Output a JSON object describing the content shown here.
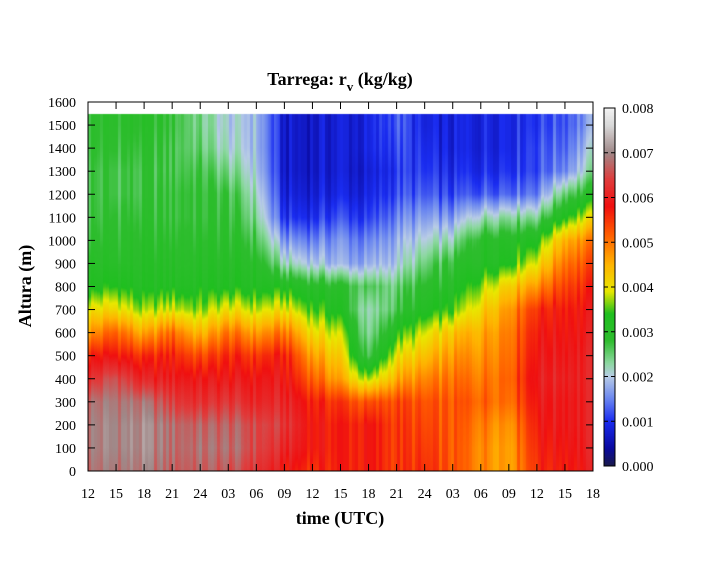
{
  "chart_data": {
    "type": "heatmap",
    "title_main": "Tarrega: r",
    "title_sub": "v",
    "title_units": " (kg/kg)",
    "xlabel": "time (UTC)",
    "ylabel": "Altura (m)",
    "x_tick_labels": [
      "12",
      "15",
      "18",
      "21",
      "24",
      "03",
      "06",
      "09",
      "12",
      "15",
      "18",
      "21",
      "24",
      "03",
      "06",
      "09",
      "12",
      "15",
      "18"
    ],
    "xlim_hours": [
      0,
      54
    ],
    "ylim": [
      0,
      1600
    ],
    "y_ticks": [
      0,
      100,
      200,
      300,
      400,
      500,
      600,
      700,
      800,
      900,
      1000,
      1100,
      1200,
      1300,
      1400,
      1500,
      1600
    ],
    "colorbar": {
      "range": [
        0.0,
        0.008
      ],
      "tick_labels": [
        "0.000",
        "0.001",
        "0.002",
        "0.003",
        "0.004",
        "0.005",
        "0.006",
        "0.007",
        "0.008"
      ],
      "stops": [
        {
          "v": 0.0,
          "c": "#1a1a4a"
        },
        {
          "v": 0.0004,
          "c": "#0a0aa0"
        },
        {
          "v": 0.001,
          "c": "#1a2cf0"
        },
        {
          "v": 0.0015,
          "c": "#6a86f0"
        },
        {
          "v": 0.002,
          "c": "#b8cce6"
        },
        {
          "v": 0.0023,
          "c": "#8cd8a0"
        },
        {
          "v": 0.0028,
          "c": "#2ebd2e"
        },
        {
          "v": 0.0034,
          "c": "#1fbf1f"
        },
        {
          "v": 0.0039,
          "c": "#e8e800"
        },
        {
          "v": 0.0045,
          "c": "#ffb400"
        },
        {
          "v": 0.0052,
          "c": "#ff5a00"
        },
        {
          "v": 0.0058,
          "c": "#f01010"
        },
        {
          "v": 0.0064,
          "c": "#e03c3c"
        },
        {
          "v": 0.007,
          "c": "#a08888"
        },
        {
          "v": 0.0076,
          "c": "#d8d8d8"
        },
        {
          "v": 0.008,
          "c": "#f4f4f4"
        }
      ]
    },
    "data_top": 1550,
    "profile_times": [
      0,
      3,
      6,
      9,
      12,
      15,
      18,
      21,
      24,
      27,
      30,
      33,
      36,
      39,
      42,
      45,
      48,
      51,
      54
    ],
    "profile_heights": [
      0,
      100,
      200,
      300,
      400,
      500,
      600,
      700,
      800,
      900,
      1000,
      1100,
      1200,
      1300,
      1400,
      1500,
      1550
    ],
    "values": [
      [
        0.0068,
        0.0069,
        0.0069,
        0.0068,
        0.0062,
        0.0057,
        0.0047,
        0.004,
        0.0032,
        0.003,
        0.0028,
        0.0027,
        0.0027,
        0.0027,
        0.0028,
        0.0028,
        0.0028
      ],
      [
        0.0069,
        0.007,
        0.007,
        0.0069,
        0.0066,
        0.0058,
        0.0052,
        0.0041,
        0.0034,
        0.003,
        0.0029,
        0.0028,
        0.0027,
        0.0027,
        0.0028,
        0.0029,
        0.0029
      ],
      [
        0.0069,
        0.007,
        0.007,
        0.0068,
        0.006,
        0.0055,
        0.0045,
        0.0036,
        0.0031,
        0.003,
        0.0029,
        0.0028,
        0.0027,
        0.0027,
        0.0028,
        0.0029,
        0.0029
      ],
      [
        0.0067,
        0.0068,
        0.0068,
        0.0064,
        0.006,
        0.0057,
        0.0051,
        0.0039,
        0.0032,
        0.003,
        0.0029,
        0.0028,
        0.0028,
        0.0027,
        0.0027,
        0.0028,
        0.0028
      ],
      [
        0.0067,
        0.0068,
        0.0067,
        0.0062,
        0.0059,
        0.0053,
        0.0044,
        0.0036,
        0.0032,
        0.003,
        0.0029,
        0.0028,
        0.0028,
        0.0027,
        0.0025,
        0.0024,
        0.0024
      ],
      [
        0.0066,
        0.0068,
        0.0067,
        0.0063,
        0.0059,
        0.0056,
        0.005,
        0.004,
        0.0032,
        0.003,
        0.0029,
        0.0028,
        0.0027,
        0.0024,
        0.0021,
        0.002,
        0.002
      ],
      [
        0.0063,
        0.0065,
        0.0065,
        0.0061,
        0.0059,
        0.0055,
        0.0047,
        0.0038,
        0.0032,
        0.003,
        0.0027,
        0.0024,
        0.0022,
        0.002,
        0.0019,
        0.0019,
        0.0019
      ],
      [
        0.0058,
        0.0061,
        0.0063,
        0.0061,
        0.0059,
        0.0057,
        0.005,
        0.004,
        0.0032,
        0.0022,
        0.0016,
        0.001,
        0.0008,
        0.0007,
        0.0007,
        0.0007,
        0.0007
      ],
      [
        0.0056,
        0.0058,
        0.0058,
        0.0057,
        0.0052,
        0.0047,
        0.0041,
        0.0035,
        0.003,
        0.002,
        0.0015,
        0.001,
        0.0008,
        0.0007,
        0.0007,
        0.0007,
        0.0007
      ],
      [
        0.0057,
        0.0057,
        0.0057,
        0.0055,
        0.0046,
        0.0042,
        0.0038,
        0.0032,
        0.0029,
        0.0018,
        0.0016,
        0.0012,
        0.0009,
        0.0008,
        0.0008,
        0.0008,
        0.0008
      ],
      [
        0.0057,
        0.0057,
        0.0057,
        0.0052,
        0.0036,
        0.0025,
        0.0022,
        0.0021,
        0.0025,
        0.0017,
        0.0014,
        0.001,
        0.0008,
        0.0007,
        0.0008,
        0.0008,
        0.0008
      ],
      [
        0.0055,
        0.0055,
        0.0055,
        0.0054,
        0.0046,
        0.004,
        0.0033,
        0.0027,
        0.0025,
        0.002,
        0.0018,
        0.0015,
        0.0012,
        0.0011,
        0.0012,
        0.0013,
        0.0013
      ],
      [
        0.0055,
        0.0054,
        0.0053,
        0.0052,
        0.0048,
        0.0043,
        0.0038,
        0.0031,
        0.0028,
        0.0024,
        0.002,
        0.0016,
        0.0012,
        0.001,
        0.0009,
        0.0008,
        0.0008
      ],
      [
        0.0052,
        0.0052,
        0.0052,
        0.0052,
        0.005,
        0.0047,
        0.0043,
        0.0034,
        0.003,
        0.0028,
        0.0022,
        0.0016,
        0.0011,
        0.0009,
        0.0008,
        0.0008,
        0.0008
      ],
      [
        0.0049,
        0.0049,
        0.005,
        0.0052,
        0.005,
        0.0048,
        0.0046,
        0.0042,
        0.0037,
        0.0031,
        0.003,
        0.0022,
        0.0013,
        0.001,
        0.0009,
        0.0009,
        0.0009
      ],
      [
        0.0047,
        0.0047,
        0.0048,
        0.0051,
        0.0052,
        0.0051,
        0.005,
        0.0048,
        0.0043,
        0.0034,
        0.0031,
        0.0024,
        0.0014,
        0.0011,
        0.001,
        0.001,
        0.001
      ],
      [
        0.0056,
        0.0057,
        0.0058,
        0.0059,
        0.006,
        0.0059,
        0.0058,
        0.0056,
        0.0048,
        0.004,
        0.0033,
        0.0024,
        0.0015,
        0.0012,
        0.0012,
        0.0011,
        0.0011
      ],
      [
        0.0058,
        0.0059,
        0.006,
        0.006,
        0.0061,
        0.006,
        0.0059,
        0.0058,
        0.0055,
        0.0051,
        0.0046,
        0.0034,
        0.0026,
        0.0016,
        0.0014,
        0.0013,
        0.0013
      ],
      [
        0.0059,
        0.006,
        0.006,
        0.006,
        0.006,
        0.006,
        0.0059,
        0.0058,
        0.0056,
        0.0053,
        0.0049,
        0.004,
        0.003,
        0.0023,
        0.002,
        0.0017,
        0.0017
      ]
    ]
  }
}
